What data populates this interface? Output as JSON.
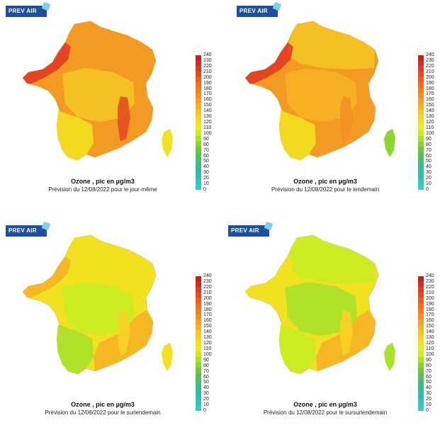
{
  "logo_text": "PREV AIR",
  "colorbar": {
    "ticks": [
      "240",
      "230",
      "220",
      "210",
      "200",
      "190",
      "180",
      "170",
      "160",
      "150",
      "140",
      "130",
      "120",
      "110",
      "100",
      "90",
      "80",
      "70",
      "60",
      "50",
      "40",
      "30",
      "20",
      "10",
      "0"
    ],
    "colors": [
      "#c81e1e",
      "#d42b22",
      "#e03a22",
      "#e64c22",
      "#ea5c22",
      "#ee6e22",
      "#f07f22",
      "#f29025",
      "#f6a025",
      "#f6b325",
      "#f8c425",
      "#f8d325",
      "#f6e020",
      "#e8ec20",
      "#c8ec22",
      "#a8e22a",
      "#8ad62e",
      "#6cc83e",
      "#58c058",
      "#48bc74",
      "#3cba8e",
      "#36baa4",
      "#34bcb4",
      "#36c4bc",
      "#3cc8c4"
    ]
  },
  "panels": [
    {
      "title": "Ozone , pic en µg/m3",
      "subtitle": "Prévision du 12/08/2022 pour le jour-même",
      "base_color": "#f39a22",
      "regions": [
        {
          "name": "north",
          "color": "#f39a22"
        },
        {
          "name": "northwest-coast",
          "color": "#e33b22"
        },
        {
          "name": "center",
          "color": "#f5c425"
        },
        {
          "name": "southwest",
          "color": "#f2e120"
        },
        {
          "name": "southeast",
          "color": "#f39a22"
        },
        {
          "name": "rhone",
          "color": "#e64c22"
        },
        {
          "name": "corsica",
          "color": "#f2e120"
        }
      ]
    },
    {
      "title": "Ozone , pic en µg/m3",
      "subtitle": "Prévision du 12/08/2022 pour le lendemain",
      "base_color": "#f39a22",
      "regions": [
        {
          "name": "north",
          "color": "#f5c425"
        },
        {
          "name": "northwest-coast",
          "color": "#e33b22"
        },
        {
          "name": "center",
          "color": "#f6b325"
        },
        {
          "name": "southwest",
          "color": "#f2e120"
        },
        {
          "name": "southeast",
          "color": "#f39a22"
        },
        {
          "name": "rhone",
          "color": "#f29025"
        },
        {
          "name": "corsica",
          "color": "#8ad62e"
        }
      ]
    },
    {
      "title": "Ozone , pic en µg/m3",
      "subtitle": "Prévision du 12/08/2022 pour le surlendemain",
      "base_color": "#f2e120",
      "regions": [
        {
          "name": "north",
          "color": "#f2e120"
        },
        {
          "name": "northwest-coast",
          "color": "#f6b325"
        },
        {
          "name": "center",
          "color": "#c8ec22"
        },
        {
          "name": "southwest",
          "color": "#a8e22a"
        },
        {
          "name": "southeast",
          "color": "#f6b325"
        },
        {
          "name": "rhone",
          "color": "#f8d325"
        },
        {
          "name": "corsica",
          "color": "#f2e120"
        }
      ]
    },
    {
      "title": "Ozone , pic en µg/m3",
      "subtitle": "Prévision du 12/08/2022 pour le sursurlendemain",
      "base_color": "#f2e120",
      "regions": [
        {
          "name": "north",
          "color": "#c8ec22"
        },
        {
          "name": "northwest-coast",
          "color": "#f2e120"
        },
        {
          "name": "center",
          "color": "#a8e22a"
        },
        {
          "name": "southwest",
          "color": "#c8ec22"
        },
        {
          "name": "southeast",
          "color": "#f6b325"
        },
        {
          "name": "rhone",
          "color": "#f8d325"
        },
        {
          "name": "corsica",
          "color": "#a8e22a"
        }
      ]
    }
  ]
}
